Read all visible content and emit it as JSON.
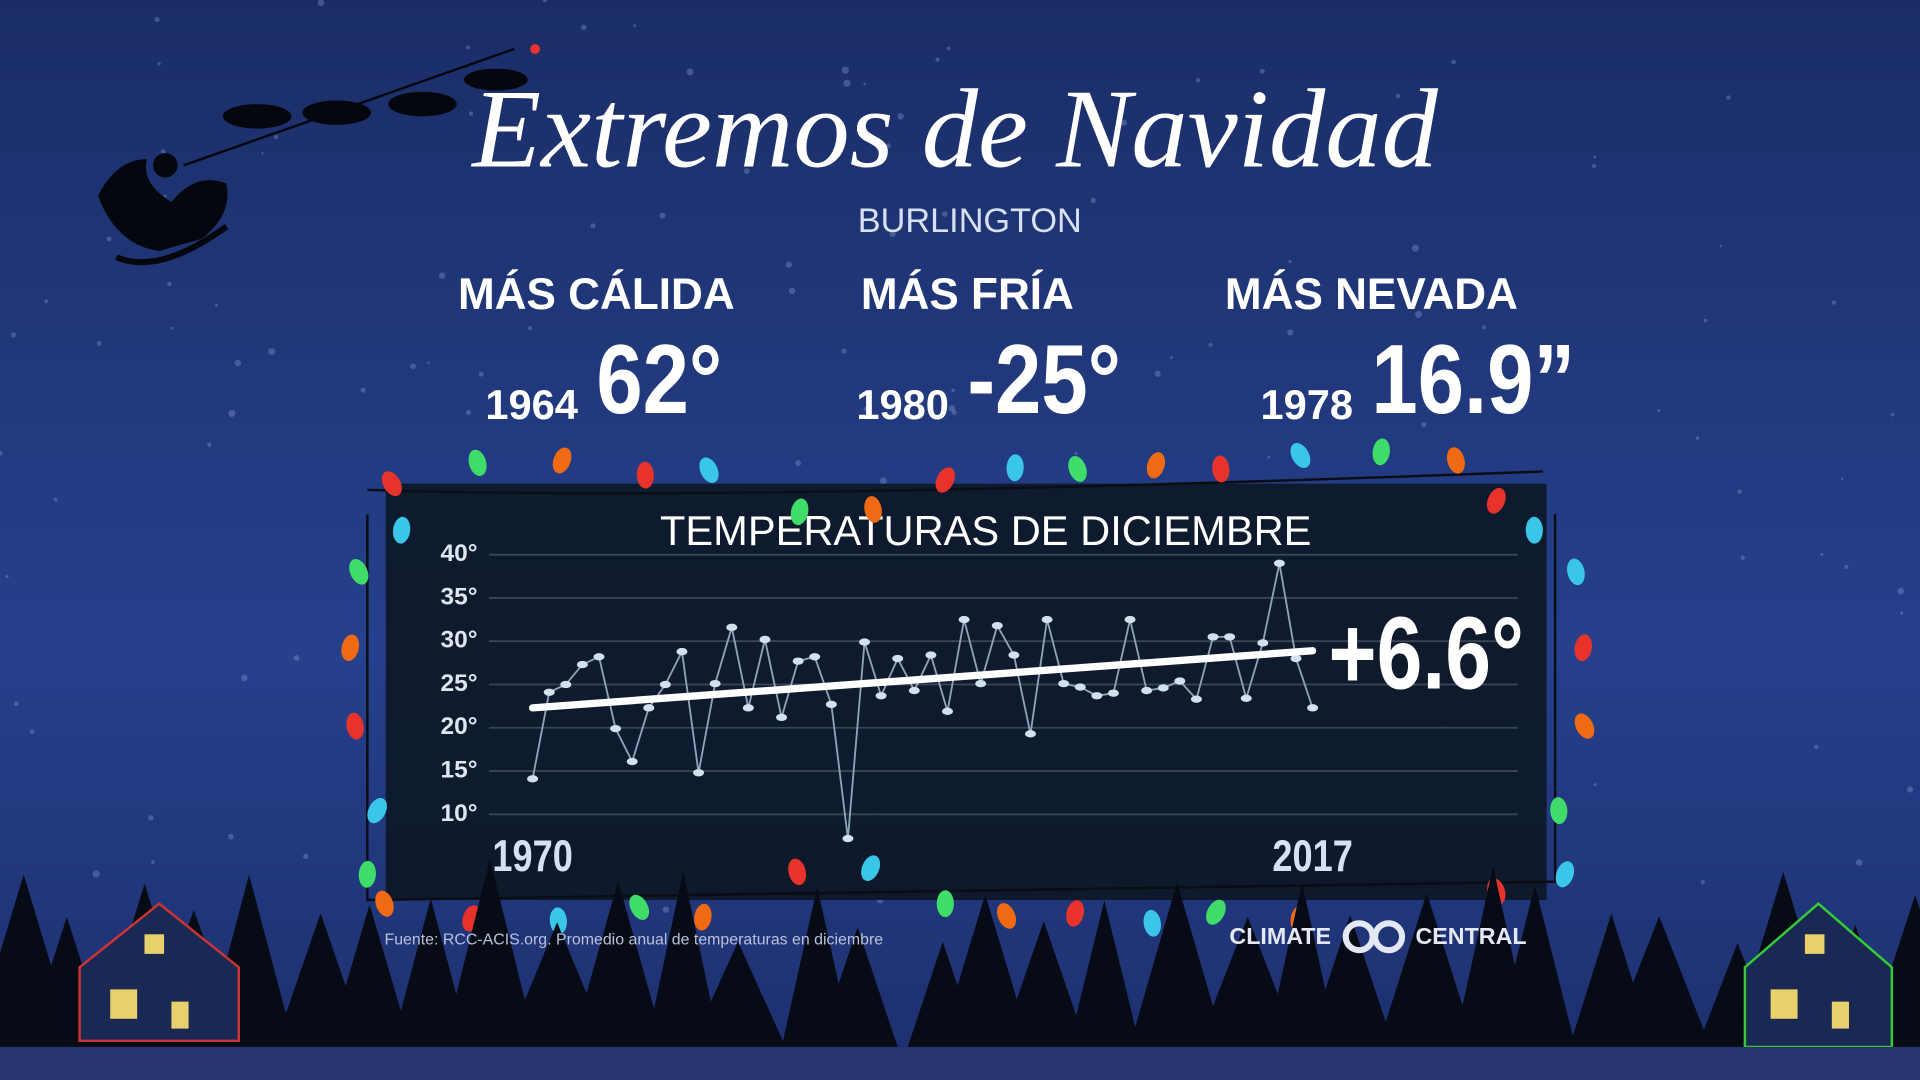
{
  "title": "Extremos de Navidad",
  "subtitle": "BURLINGTON",
  "highlights": [
    {
      "label": "MÁS CÁLIDA",
      "year": "1964",
      "value": "62°"
    },
    {
      "label": "MÁS FRÍA",
      "year": "1980",
      "value": "-25°"
    },
    {
      "label": "MÁS NEVADA",
      "year": "1978",
      "value": "16.9”"
    }
  ],
  "source": "Fuente: RCC-ACIS.org. Promedio anual de temperaturas en diciembre",
  "logo": {
    "left": "CLIMATE",
    "right": "CENTRAL"
  },
  "chart_data": {
    "type": "line",
    "title": "TEMPERATURAS DE DICIEMBRE",
    "x": [
      1970,
      1971,
      1972,
      1973,
      1974,
      1975,
      1976,
      1977,
      1978,
      1979,
      1980,
      1981,
      1982,
      1983,
      1984,
      1985,
      1986,
      1987,
      1988,
      1989,
      1990,
      1991,
      1992,
      1993,
      1994,
      1995,
      1996,
      1997,
      1998,
      1999,
      2000,
      2001,
      2002,
      2003,
      2004,
      2005,
      2006,
      2007,
      2008,
      2009,
      2010,
      2011,
      2012,
      2013,
      2014,
      2015,
      2016,
      2017
    ],
    "series": [
      {
        "color": "#8fa3b8",
        "values": [
          14.1,
          24.1,
          25.0,
          27.3,
          28.2,
          19.9,
          16.1,
          22.3,
          25.0,
          28.8,
          14.8,
          25.1,
          31.6,
          22.3,
          30.2,
          21.2,
          27.7,
          28.2,
          22.7,
          7.2,
          29.9,
          23.7,
          28.0,
          24.3,
          28.4,
          21.9,
          32.5,
          25.1,
          31.8,
          28.4,
          19.3,
          32.5,
          25.1,
          24.7,
          23.7,
          24.0,
          32.5,
          24.3,
          24.6,
          25.4,
          23.3,
          30.5,
          30.5,
          23.4,
          29.8,
          39.0,
          28.0,
          22.3
        ]
      }
    ],
    "trend": {
      "x": [
        1970,
        2017
      ],
      "values": [
        22.3,
        28.9
      ],
      "color": "#ffffff"
    },
    "annotation": "+6.6°",
    "xlim": [
      1967,
      2029
    ],
    "xticks": [
      1970,
      2017
    ],
    "ylim": [
      6,
      41
    ],
    "yticks": [
      {
        "value": 10,
        "label": "10°"
      },
      {
        "value": 15,
        "label": "15°"
      },
      {
        "value": 20,
        "label": "20°"
      },
      {
        "value": 25,
        "label": "25°"
      },
      {
        "value": 30,
        "label": "30°"
      },
      {
        "value": 35,
        "label": "35°"
      },
      {
        "value": 40,
        "label": "40°"
      }
    ],
    "grid": true
  }
}
